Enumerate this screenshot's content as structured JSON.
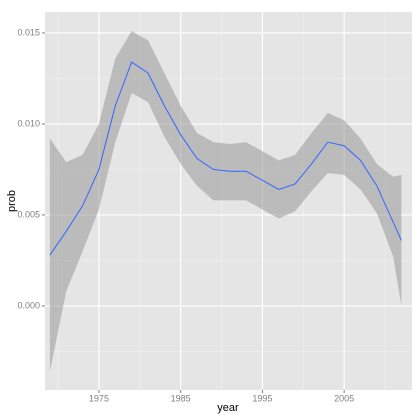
{
  "chart_data": {
    "type": "smooth",
    "x_label": "year",
    "y_label": "prob",
    "x": [
      1969,
      1971,
      1973,
      1975,
      1977,
      1979,
      1981,
      1983,
      1985,
      1987,
      1989,
      1991,
      1993,
      1995,
      1997,
      1999,
      2001,
      2003,
      2005,
      2007,
      2009,
      2011,
      2012
    ],
    "values": [
      0.0028,
      0.0041,
      0.0055,
      0.0075,
      0.011,
      0.0134,
      0.0128,
      0.011,
      0.0094,
      0.0081,
      0.0075,
      0.0074,
      0.0074,
      0.0069,
      0.0064,
      0.0067,
      0.0078,
      0.009,
      0.0088,
      0.008,
      0.0066,
      0.0046,
      0.0036
    ],
    "upper": [
      0.0092,
      0.0079,
      0.0083,
      0.01,
      0.0136,
      0.0151,
      0.0146,
      0.0128,
      0.011,
      0.0095,
      0.009,
      0.0089,
      0.009,
      0.0085,
      0.008,
      0.0083,
      0.0095,
      0.0106,
      0.0102,
      0.0092,
      0.0078,
      0.0071,
      0.0072
    ],
    "lower": [
      -0.0036,
      0.0008,
      0.003,
      0.0053,
      0.009,
      0.0117,
      0.0112,
      0.0093,
      0.0078,
      0.0066,
      0.0058,
      0.0058,
      0.0058,
      0.0053,
      0.0048,
      0.0052,
      0.0063,
      0.0073,
      0.0072,
      0.0064,
      0.0051,
      0.0027,
      0.0
    ],
    "color": "#3366ff",
    "band_color": "#999999",
    "xlim": [
      1968.4,
      2013.3
    ],
    "ylim": [
      -0.00462,
      0.01615
    ],
    "xticks": [
      1975,
      1985,
      1995,
      2005
    ],
    "yticks": [
      {
        "value": 0,
        "label": "0.000"
      },
      0.005,
      {
        "value": 0.01,
        "label": "0.010"
      },
      0.015
    ],
    "x_minor_ticks": [
      1970,
      1980,
      1990,
      2000,
      2010
    ],
    "y_minor_ticks": [
      -0.0025,
      0.0025,
      0.0075,
      0.0125
    ],
    "grid": true
  }
}
